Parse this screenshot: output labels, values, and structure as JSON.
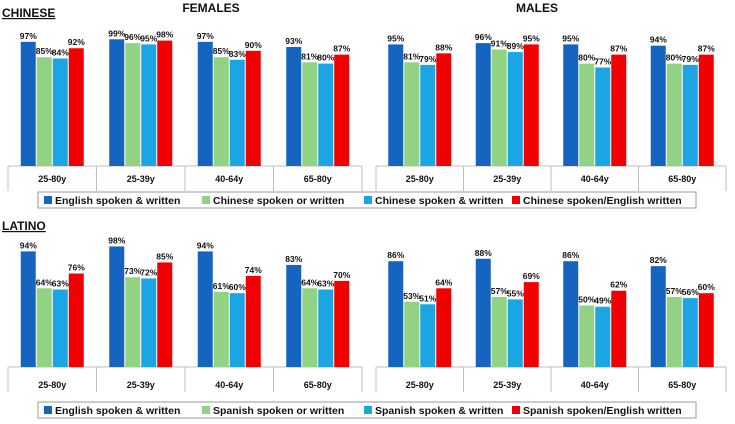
{
  "colors": {
    "english": "#1565C0",
    "native_spoken_or_written": "#92D383",
    "native_spoken_and_written": "#1BA6E3",
    "native_spoken_english_written": "#F00000"
  },
  "chart_data": [
    {
      "type": "bar",
      "section": "CHINESE",
      "group_title": "FEMALES",
      "categories": [
        "25-80y",
        "25-39y",
        "40-64y",
        "65-80y"
      ],
      "series": [
        {
          "name": "English spoken & written",
          "values": [
            97,
            99,
            97,
            93
          ]
        },
        {
          "name": "Chinese spoken or written",
          "values": [
            85,
            96,
            85,
            81
          ]
        },
        {
          "name": "Chinese spoken & written",
          "values": [
            84,
            95,
            83,
            80
          ]
        },
        {
          "name": "Chinese spoken/English written",
          "values": [
            92,
            98,
            90,
            87
          ]
        }
      ],
      "ylim": [
        0,
        100
      ]
    },
    {
      "type": "bar",
      "section": "CHINESE",
      "group_title": "MALES",
      "categories": [
        "25-80y",
        "25-39y",
        "40-64y",
        "65-80y"
      ],
      "series": [
        {
          "name": "English spoken & written",
          "values": [
            95,
            96,
            95,
            94
          ]
        },
        {
          "name": "Chinese spoken or written",
          "values": [
            81,
            91,
            80,
            80
          ]
        },
        {
          "name": "Chinese spoken & written",
          "values": [
            79,
            89,
            77,
            79
          ]
        },
        {
          "name": "Chinese spoken/English written",
          "values": [
            88,
            95,
            87,
            87
          ]
        }
      ],
      "ylim": [
        0,
        100
      ]
    },
    {
      "type": "bar",
      "section": "LATINO",
      "group_title": "FEMALES",
      "categories": [
        "25-80y",
        "25-39y",
        "40-64y",
        "65-80y"
      ],
      "series": [
        {
          "name": "English spoken & written",
          "values": [
            94,
            98,
            94,
            83
          ]
        },
        {
          "name": "Spanish spoken or written",
          "values": [
            64,
            73,
            61,
            64
          ]
        },
        {
          "name": "Spanish spoken & written",
          "values": [
            63,
            72,
            60,
            63
          ]
        },
        {
          "name": "Spanish spoken/English written",
          "values": [
            76,
            85,
            74,
            70
          ]
        }
      ],
      "ylim": [
        0,
        100
      ]
    },
    {
      "type": "bar",
      "section": "LATINO",
      "group_title": "MALES",
      "categories": [
        "25-80y",
        "25-39y",
        "40-64y",
        "65-80y"
      ],
      "series": [
        {
          "name": "English spoken & written",
          "values": [
            86,
            88,
            86,
            82
          ]
        },
        {
          "name": "Spanish spoken or written",
          "values": [
            53,
            57,
            50,
            57
          ]
        },
        {
          "name": "Spanish spoken & written",
          "values": [
            51,
            55,
            49,
            56
          ]
        },
        {
          "name": "Spanish spoken/English written",
          "values": [
            64,
            69,
            62,
            60
          ]
        }
      ],
      "ylim": [
        0,
        100
      ]
    }
  ],
  "legends": {
    "chinese": [
      "English spoken & written",
      "Chinese spoken or written",
      "Chinese spoken & written",
      "Chinese spoken/English written"
    ],
    "latino": [
      "English spoken & written",
      "Spanish spoken or written",
      "Spanish spoken & written",
      "Spanish spoken/English written"
    ]
  }
}
